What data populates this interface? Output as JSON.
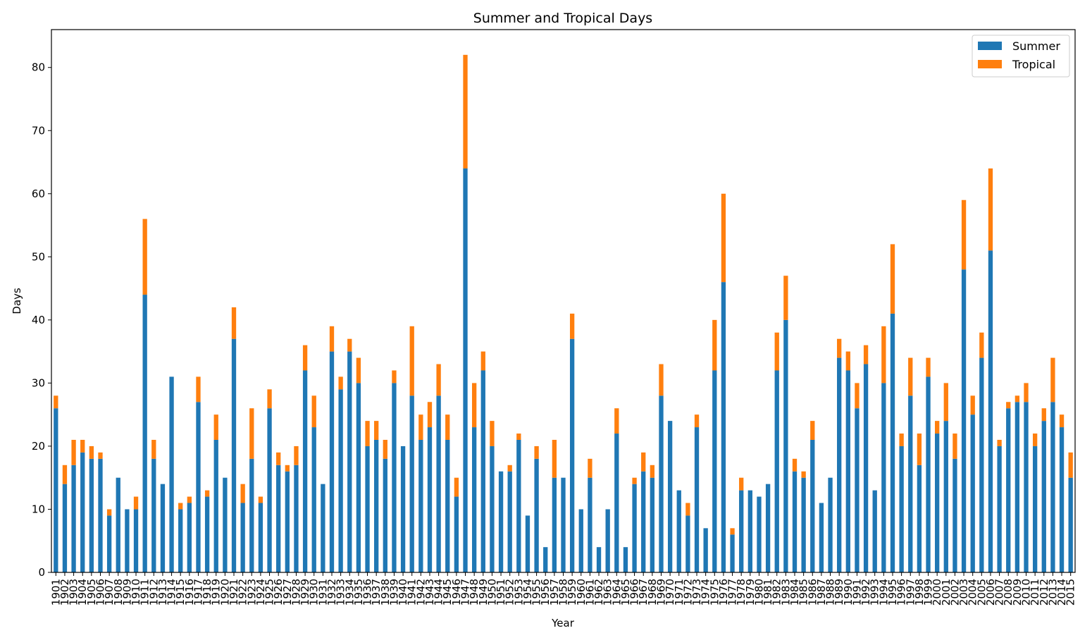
{
  "chart_data": {
    "type": "bar",
    "stacked": true,
    "title": "Summer and Tropical Days",
    "xlabel": "Year",
    "ylabel": "Days",
    "ylim": [
      0,
      86
    ],
    "yticks": [
      0,
      10,
      20,
      30,
      40,
      50,
      60,
      70,
      80
    ],
    "grid": false,
    "legend_position": "top-right",
    "categories": [
      "1901",
      "1902",
      "1903",
      "1904",
      "1905",
      "1906",
      "1907",
      "1908",
      "1909",
      "1910",
      "1911",
      "1912",
      "1913",
      "1914",
      "1915",
      "1916",
      "1917",
      "1918",
      "1919",
      "1920",
      "1921",
      "1922",
      "1923",
      "1924",
      "1925",
      "1926",
      "1927",
      "1928",
      "1929",
      "1930",
      "1931",
      "1932",
      "1933",
      "1934",
      "1935",
      "1936",
      "1937",
      "1938",
      "1939",
      "1940",
      "1941",
      "1942",
      "1943",
      "1944",
      "1945",
      "1946",
      "1947",
      "1948",
      "1949",
      "1950",
      "1951",
      "1952",
      "1953",
      "1954",
      "1955",
      "1956",
      "1957",
      "1958",
      "1959",
      "1960",
      "1961",
      "1962",
      "1963",
      "1964",
      "1965",
      "1966",
      "1967",
      "1968",
      "1969",
      "1970",
      "1971",
      "1972",
      "1973",
      "1974",
      "1975",
      "1976",
      "1977",
      "1978",
      "1979",
      "1980",
      "1981",
      "1982",
      "1983",
      "1984",
      "1985",
      "1986",
      "1987",
      "1988",
      "1989",
      "1990",
      "1991",
      "1992",
      "1993",
      "1994",
      "1995",
      "1996",
      "1997",
      "1998",
      "1999",
      "2000",
      "2001",
      "2002",
      "2003",
      "2004",
      "2005",
      "2006",
      "2007",
      "2008",
      "2009",
      "2010",
      "2011",
      "2012",
      "2013",
      "2014",
      "2015"
    ],
    "series": [
      {
        "name": "Summer",
        "color": "#1f77b4",
        "values": [
          26,
          14,
          17,
          19,
          18,
          18,
          9,
          15,
          10,
          10,
          44,
          18,
          14,
          31,
          10,
          11,
          27,
          12,
          21,
          15,
          37,
          11,
          18,
          11,
          26,
          17,
          16,
          17,
          32,
          23,
          14,
          35,
          29,
          35,
          30,
          20,
          21,
          18,
          30,
          20,
          28,
          21,
          23,
          28,
          21,
          12,
          64,
          23,
          32,
          20,
          16,
          16,
          21,
          9,
          18,
          4,
          15,
          15,
          37,
          10,
          15,
          4,
          10,
          22,
          4,
          14,
          16,
          15,
          28,
          24,
          13,
          9,
          23,
          7,
          32,
          46,
          6,
          13,
          13,
          12,
          14,
          32,
          40,
          16,
          15,
          21,
          11,
          15,
          34,
          32,
          26,
          33,
          13,
          30,
          41,
          20,
          28,
          17,
          31,
          22,
          24,
          18,
          48,
          25,
          34,
          51,
          20,
          26,
          27,
          27,
          20,
          24,
          27,
          23,
          15
        ]
      },
      {
        "name": "Tropical",
        "color": "#ff7f0e",
        "values": [
          2,
          3,
          4,
          2,
          2,
          1,
          1,
          0,
          0,
          2,
          12,
          3,
          0,
          0,
          1,
          1,
          4,
          1,
          4,
          0,
          5,
          3,
          8,
          1,
          3,
          2,
          1,
          3,
          4,
          5,
          0,
          4,
          2,
          2,
          4,
          4,
          3,
          3,
          2,
          0,
          11,
          4,
          4,
          5,
          4,
          3,
          18,
          7,
          3,
          4,
          0,
          1,
          1,
          0,
          2,
          0,
          6,
          0,
          4,
          0,
          3,
          0,
          0,
          4,
          0,
          1,
          3,
          2,
          5,
          0,
          0,
          2,
          2,
          0,
          8,
          14,
          1,
          2,
          0,
          0,
          0,
          6,
          7,
          2,
          1,
          3,
          0,
          0,
          3,
          3,
          4,
          3,
          0,
          9,
          11,
          2,
          6,
          5,
          3,
          2,
          6,
          4,
          11,
          3,
          4,
          13,
          1,
          1,
          1,
          3,
          2,
          2,
          7,
          2,
          4
        ]
      }
    ]
  }
}
